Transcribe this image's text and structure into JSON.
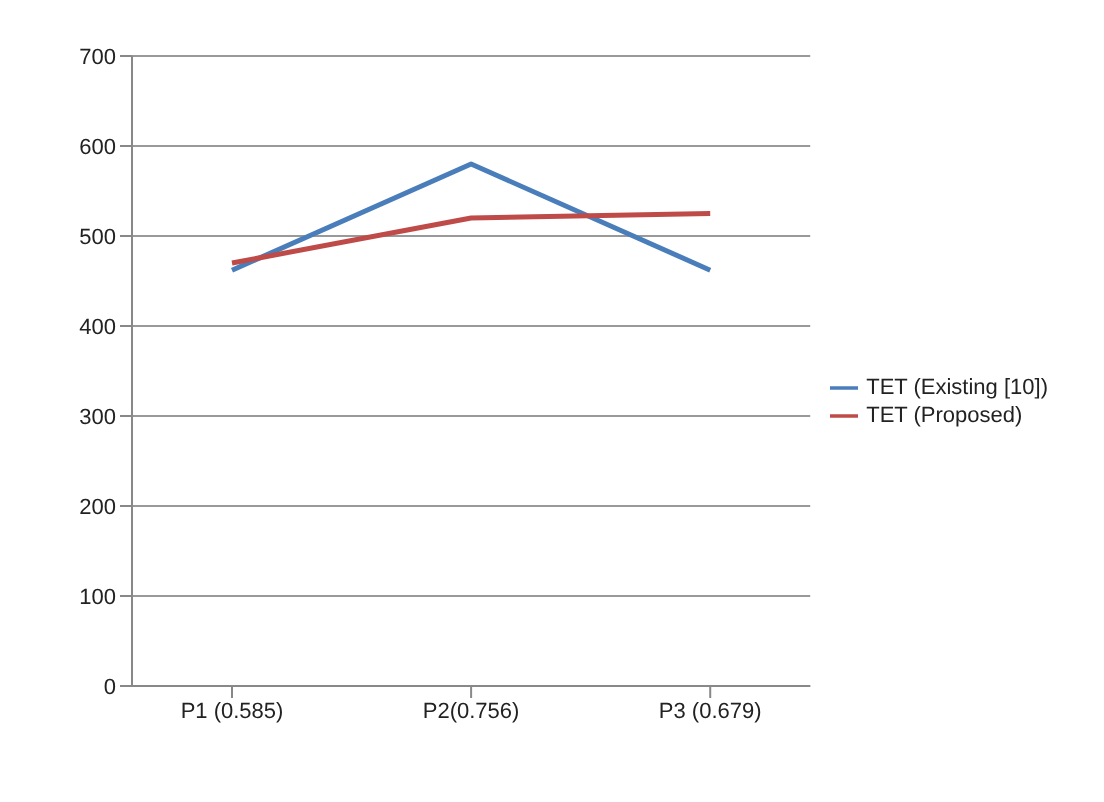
{
  "chart_data": {
    "type": "line",
    "categories": [
      "P1 (0.585)",
      "P2(0.756)",
      "P3 (0.679)"
    ],
    "series": [
      {
        "name": "TET (Existing [10])",
        "color": "#4a7ebb",
        "values": [
          462,
          580,
          462
        ]
      },
      {
        "name": "TET (Proposed)",
        "color": "#be4b48",
        "values": [
          470,
          520,
          525
        ]
      }
    ],
    "ylim": [
      0,
      700
    ],
    "yticks": [
      0,
      100,
      200,
      300,
      400,
      500,
      600,
      700
    ],
    "grid": "y",
    "legend": "right",
    "marker": "none",
    "line_style": "solid"
  }
}
